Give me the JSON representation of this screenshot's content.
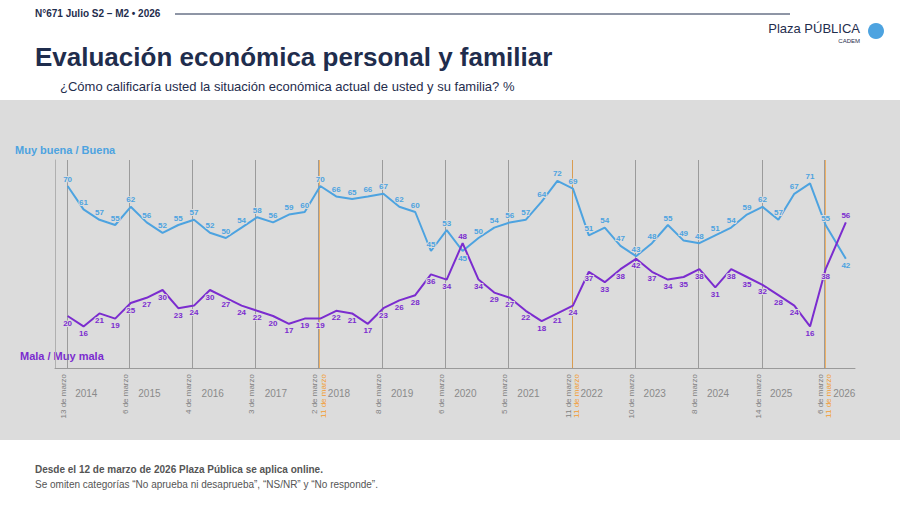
{
  "chart_data": {
    "type": "line",
    "header": "N°671 Julio S2 – M2 • 2026",
    "brand": "Plaza PÚBLICA",
    "brand_sub": "CADEM",
    "title": "Evaluación económica personal y familiar",
    "subtitle": "¿Cómo calificaría usted la situación económica actual de usted y su familia? %",
    "notes": [
      "Desde el 12 de marzo de 2026 Plaza Pública se aplica online.",
      "Se omiten categorías “No aprueba ni desaprueba”, “NS/NR” y “No responde”."
    ],
    "x": [
      "2014-03-15",
      "2014-06-15",
      "2014-09-15",
      "2014-12-15",
      "2015-03-15",
      "2015-06-15",
      "2015-09-15",
      "2015-12-15",
      "2016-03-15",
      "2016-06-15",
      "2016-09-15",
      "2016-12-15",
      "2017-03-15",
      "2017-06-15",
      "2017-09-15",
      "2017-12-15",
      "2018-03-15",
      "2018-06-15",
      "2018-09-15",
      "2018-12-15",
      "2019-03-15",
      "2019-06-15",
      "2019-09-15",
      "2019-12-15",
      "2020-03-15",
      "2020-06-15",
      "2020-09-15",
      "2020-12-15",
      "2021-03-15",
      "2021-06-15",
      "2021-09-15",
      "2021-12-15",
      "2022-03-15",
      "2022-06-15",
      "2022-09-15",
      "2022-12-15",
      "2023-03-15",
      "2023-06-15",
      "2023-09-15",
      "2023-12-15",
      "2024-03-15",
      "2024-06-15",
      "2024-09-15",
      "2024-12-15",
      "2025-03-15",
      "2025-06-15",
      "2025-09-15",
      "2025-12-15",
      "2026-03-15",
      "2026-07-10"
    ],
    "xlim": [
      "2014-01-01",
      "2026-09-01"
    ],
    "xticks": [
      {
        "value": "2014-07-01",
        "label": "2014"
      },
      {
        "value": "2015-07-01",
        "label": "2015"
      },
      {
        "value": "2016-07-01",
        "label": "2016"
      },
      {
        "value": "2017-07-01",
        "label": "2017"
      },
      {
        "value": "2018-07-01",
        "label": "2018"
      },
      {
        "value": "2019-07-01",
        "label": "2019"
      },
      {
        "value": "2020-07-01",
        "label": "2020"
      },
      {
        "value": "2021-07-01",
        "label": "2021"
      },
      {
        "value": "2022-07-01",
        "label": "2022"
      },
      {
        "value": "2023-07-01",
        "label": "2023"
      },
      {
        "value": "2024-07-01",
        "label": "2024"
      },
      {
        "value": "2025-07-01",
        "label": "2025"
      },
      {
        "value": "2026-07-01",
        "label": "2026"
      }
    ],
    "markers": [
      {
        "x": "2014-03-13",
        "label": "13 de marzo",
        "color": "#7f7f7f"
      },
      {
        "x": "2015-03-06",
        "label": "6 de marzo",
        "color": "#7f7f7f"
      },
      {
        "x": "2016-03-04",
        "label": "4 de marzo",
        "color": "#7f7f7f"
      },
      {
        "x": "2017-03-03",
        "label": "3 de marzo",
        "color": "#7f7f7f"
      },
      {
        "x": "2018-03-02",
        "label": "2 de marzo",
        "color": "#7f7f7f"
      },
      {
        "x": "2019-03-08",
        "label": "8 de marzo",
        "color": "#7f7f7f"
      },
      {
        "x": "2020-03-06",
        "label": "6 de marzo",
        "color": "#7f7f7f"
      },
      {
        "x": "2021-03-05",
        "label": "5 de marzo",
        "color": "#7f7f7f"
      },
      {
        "x": "2022-03-11",
        "label": "11 de marzo",
        "color": "#7f7f7f"
      },
      {
        "x": "2023-03-10",
        "label": "10 de marzo",
        "color": "#7f7f7f"
      },
      {
        "x": "2024-03-08",
        "label": "8 de marzo",
        "color": "#7f7f7f"
      },
      {
        "x": "2025-03-14",
        "label": "14 de marzo",
        "color": "#7f7f7f"
      },
      {
        "x": "2026-03-06",
        "label": "6 de marzo",
        "color": "#7f7f7f"
      },
      {
        "x": "2018-03-11",
        "label": "11 de marzo",
        "color": "#f39c32"
      },
      {
        "x": "2022-03-11",
        "label": "11 de marzo",
        "color": "#f39c32"
      },
      {
        "x": "2026-03-11",
        "label": "11 de marzo",
        "color": "#f39c32"
      }
    ],
    "ylim": [
      0,
      80
    ],
    "tick_labels": "x",
    "grid": false,
    "legend": "left",
    "data_labels": true,
    "series": [
      {
        "name": "Muy buena / Buena",
        "color": "#4da3e0",
        "values": [
          70,
          61,
          57,
          55,
          62,
          56,
          52,
          55,
          57,
          52,
          50,
          54,
          58,
          56,
          59,
          60,
          70,
          66,
          65,
          66,
          67,
          62,
          60,
          45,
          53,
          45,
          50,
          54,
          56,
          57,
          64,
          72,
          69,
          51,
          54,
          47,
          43,
          48,
          55,
          49,
          48,
          51,
          54,
          59,
          62,
          57,
          67,
          71,
          55,
          42
        ]
      },
      {
        "name": "Mala / Muy mala",
        "color": "#7b2ccf",
        "values": [
          20,
          16,
          21,
          19,
          25,
          27,
          30,
          23,
          24,
          30,
          27,
          24,
          22,
          20,
          17,
          19,
          19,
          22,
          21,
          17,
          23,
          26,
          28,
          36,
          34,
          48,
          34,
          29,
          27,
          22,
          18,
          21,
          24,
          37,
          33,
          38,
          42,
          37,
          34,
          35,
          38,
          31,
          38,
          35,
          32,
          28,
          24,
          16,
          38,
          56
        ]
      }
    ]
  }
}
